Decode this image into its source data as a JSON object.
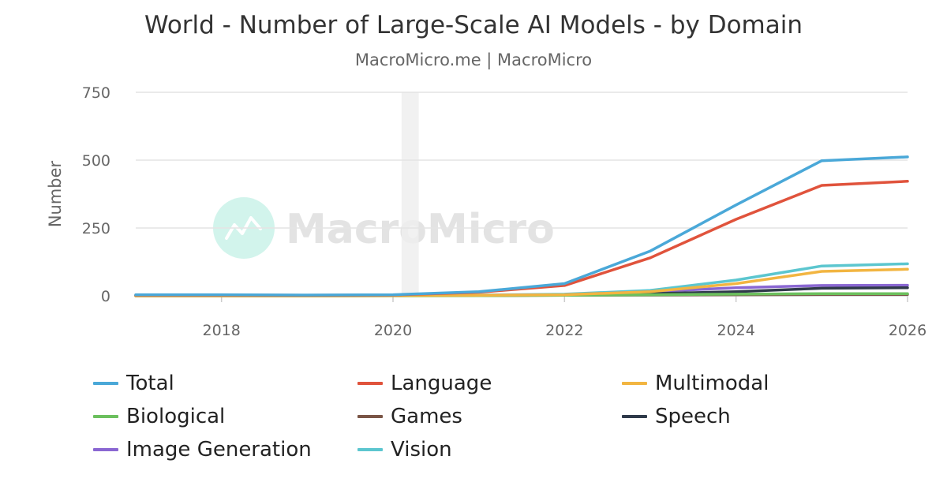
{
  "title": "World - Number of Large-Scale AI Models - by Domain",
  "subtitle": "MacroMicro.me | MacroMicro",
  "watermark": "MacroMicro",
  "chart_data": {
    "type": "line",
    "title": "World - Number of Large-Scale AI Models - by Domain",
    "ylabel": "Number",
    "xlabel": "",
    "x": [
      2017,
      2018,
      2019,
      2020,
      2021,
      2022,
      2023,
      2024,
      2025,
      2026
    ],
    "xlim": [
      2017,
      2026
    ],
    "ylim": [
      0,
      750
    ],
    "x_ticks": [
      2018,
      2020,
      2022,
      2024,
      2026
    ],
    "y_ticks": [
      0,
      250,
      500,
      750
    ],
    "highlight_band": [
      2020.1,
      2020.3
    ],
    "grid": "horizontal",
    "legend_position": "bottom",
    "series": [
      {
        "name": "Total",
        "color": "#4aa8d8",
        "values": [
          4,
          4,
          3,
          4,
          15,
          45,
          165,
          335,
          498,
          512
        ]
      },
      {
        "name": "Language",
        "color": "#e0533c",
        "values": [
          3,
          3,
          2,
          3,
          13,
          38,
          140,
          282,
          407,
          422
        ]
      },
      {
        "name": "Multimodal",
        "color": "#f2b541",
        "values": [
          0,
          0,
          0,
          1,
          2,
          4,
          15,
          45,
          90,
          98
        ]
      },
      {
        "name": "Biological",
        "color": "#6cc05e",
        "values": [
          0,
          0,
          0,
          0,
          1,
          2,
          4,
          6,
          8,
          8
        ]
      },
      {
        "name": "Games",
        "color": "#7a5546",
        "values": [
          1,
          1,
          1,
          1,
          1,
          2,
          3,
          4,
          5,
          5
        ]
      },
      {
        "name": "Speech",
        "color": "#2f3a4a",
        "values": [
          0,
          0,
          0,
          1,
          1,
          3,
          8,
          15,
          28,
          30
        ]
      },
      {
        "name": "Image Generation",
        "color": "#8a67d2",
        "values": [
          0,
          0,
          0,
          1,
          2,
          4,
          15,
          30,
          38,
          39
        ]
      },
      {
        "name": "Vision",
        "color": "#5cc6cf",
        "values": [
          1,
          1,
          1,
          2,
          3,
          6,
          20,
          58,
          110,
          118
        ]
      }
    ]
  }
}
